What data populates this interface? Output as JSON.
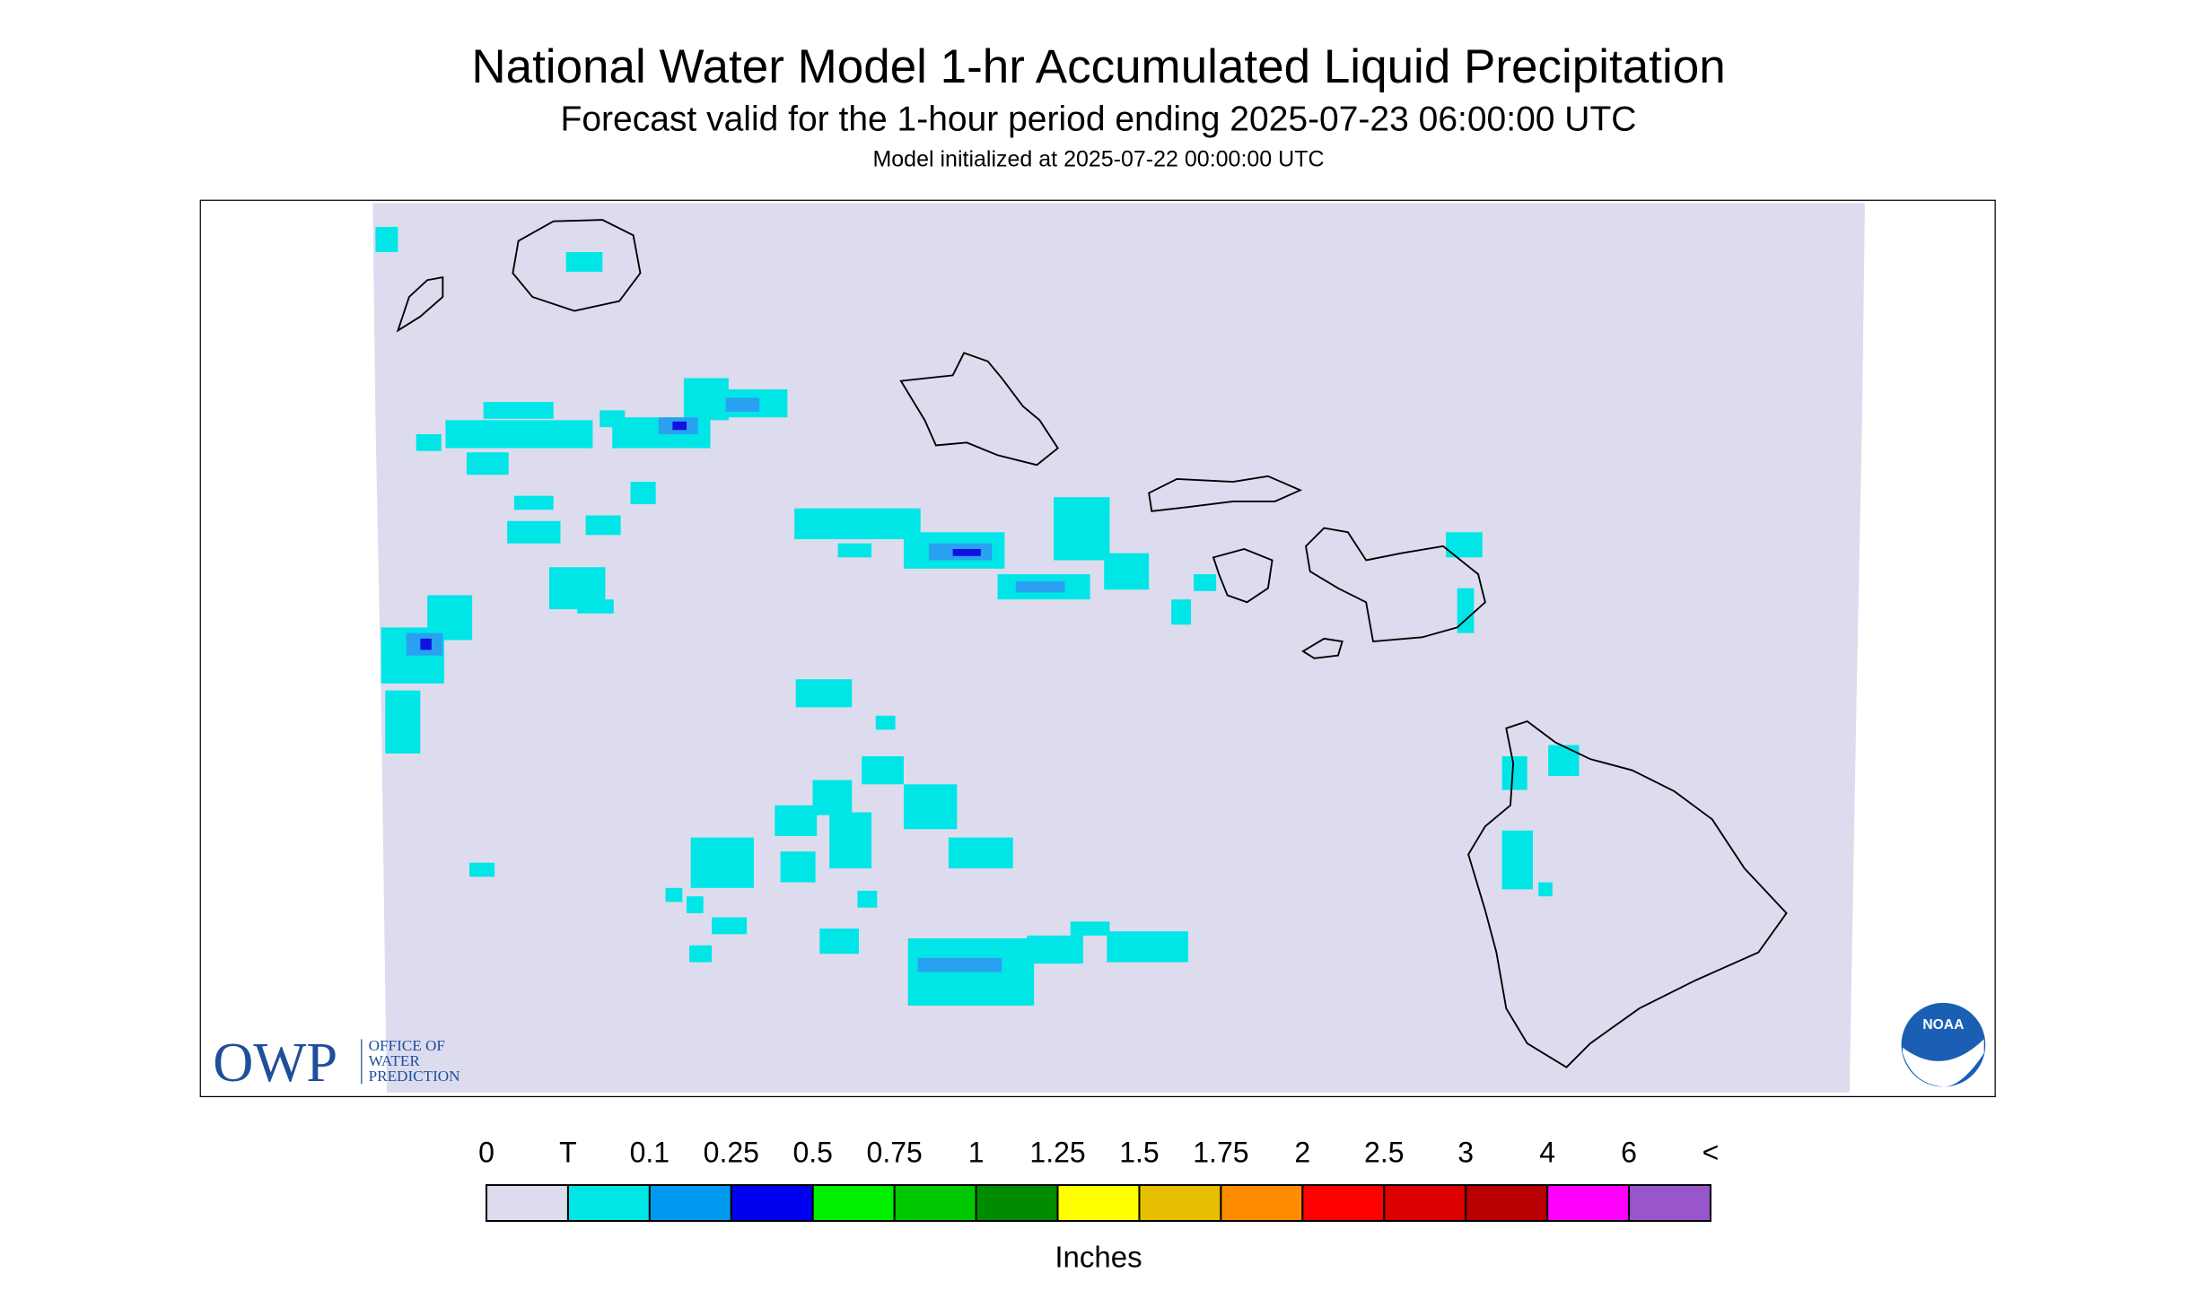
{
  "header": {
    "title": "National Water Model 1-hr Accumulated Liquid Precipitation",
    "subtitle": "Forecast valid for the 1-hour period ending 2025-07-23 06:00:00 UTC",
    "init": "Model initialized at 2025-07-22 00:00:00 UTC"
  },
  "logo": {
    "acronym": "OWP",
    "lines": [
      "OFFICE OF",
      "WATER",
      "PREDICTION"
    ],
    "noaa": "NOAA"
  },
  "legend": {
    "labels": [
      "0",
      "T",
      "0.1",
      "0.25",
      "0.5",
      "0.75",
      "1",
      "1.25",
      "1.5",
      "1.75",
      "2",
      "2.5",
      "3",
      "4",
      "6",
      "<"
    ],
    "colors": [
      "#dcdcee",
      "#00e6e6",
      "#0099f0",
      "#0000f0",
      "#00f000",
      "#00c800",
      "#008c00",
      "#ffff00",
      "#e6bf00",
      "#ff8c00",
      "#ff0000",
      "#dd0000",
      "#b80000",
      "#ff00ff",
      "#9955cc"
    ],
    "unit": "Inches"
  }
}
